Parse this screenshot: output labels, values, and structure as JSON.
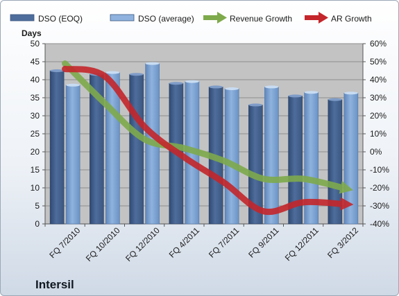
{
  "company": "Intersil",
  "colors": {
    "eoq": "#4f6d9c",
    "avg": "#8fb3de",
    "revenue": "#7eaa4c",
    "ar": "#c4262b",
    "plot_bg": "#c3c3c3"
  },
  "chart_data": {
    "type": "bar",
    "title": "",
    "ylabel": "Days",
    "ylim": [
      0,
      50
    ],
    "y2lim": [
      -0.4,
      0.6
    ],
    "categories": [
      "FQ 7/2010",
      "FQ 10/2010",
      "FQ 12/2010",
      "FQ 4/2011",
      "FQ 7/2011",
      "FQ 9/2011",
      "FQ 12/2011",
      "FQ 3/2012"
    ],
    "y_ticks": [
      "0",
      "5",
      "10",
      "15",
      "20",
      "25",
      "30",
      "35",
      "40",
      "45",
      "50"
    ],
    "y2_ticks": [
      "-40%",
      "-30%",
      "-20%",
      "-10%",
      "0%",
      "10%",
      "20%",
      "30%",
      "40%",
      "50%",
      "60%"
    ],
    "legend_position": "top",
    "grid": true,
    "series": [
      {
        "name": "DSO (EOQ)",
        "type": "bar",
        "axis": "left",
        "values": [
          42.5,
          41.5,
          41.5,
          39,
          38,
          33,
          35.5,
          34.5
        ]
      },
      {
        "name": "DSO (average)",
        "type": "bar",
        "axis": "left",
        "values": [
          38.5,
          42,
          44.5,
          39.5,
          37.5,
          38,
          36.5,
          36.3
        ]
      },
      {
        "name": "Revenue Growth",
        "type": "line",
        "axis": "right",
        "values": [
          0.49,
          0.27,
          0.07,
          0.02,
          -0.05,
          -0.15,
          -0.15,
          -0.2
        ]
      },
      {
        "name": "AR Growth",
        "type": "line",
        "axis": "right",
        "values": [
          0.46,
          0.42,
          0.14,
          -0.03,
          -0.17,
          -0.33,
          -0.28,
          -0.29
        ]
      }
    ]
  }
}
